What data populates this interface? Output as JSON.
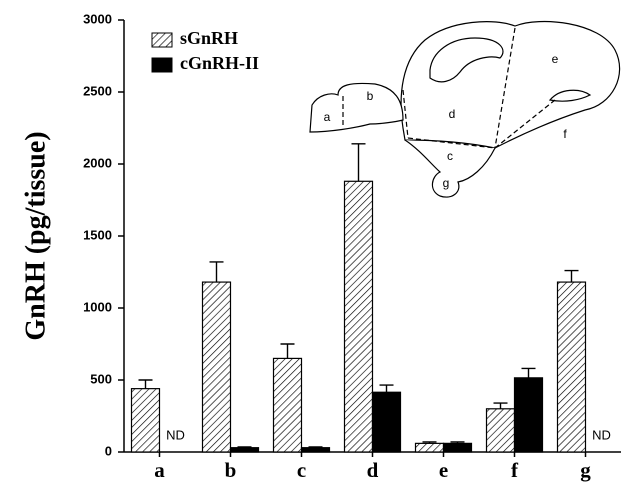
{
  "chart_data": {
    "type": "bar",
    "y_label": "GnRH (pg/tissue)",
    "categories": [
      "a",
      "b",
      "c",
      "d",
      "e",
      "f",
      "g"
    ],
    "series": [
      {
        "name": "sGnRH",
        "color": "#000000",
        "hatch": true,
        "values": [
          440,
          1180,
          650,
          1880,
          60,
          300,
          1180
        ],
        "errors": [
          60,
          140,
          100,
          260,
          10,
          40,
          80
        ]
      },
      {
        "name": "cGnRH-II",
        "color": "#000000",
        "hatch": false,
        "values": [
          null,
          30,
          30,
          415,
          60,
          515,
          null
        ],
        "errors": [
          null,
          5,
          5,
          50,
          10,
          65,
          null
        ],
        "value_labels": [
          "ND",
          null,
          null,
          null,
          null,
          null,
          "ND"
        ]
      }
    ],
    "ylim": [
      0,
      3000
    ],
    "yticks": [
      0,
      500,
      1000,
      1500,
      2000,
      2500,
      3000
    ],
    "legend": "upper-left",
    "annotations": [
      "a",
      "b",
      "c",
      "d",
      "e",
      "f",
      "g"
    ]
  }
}
